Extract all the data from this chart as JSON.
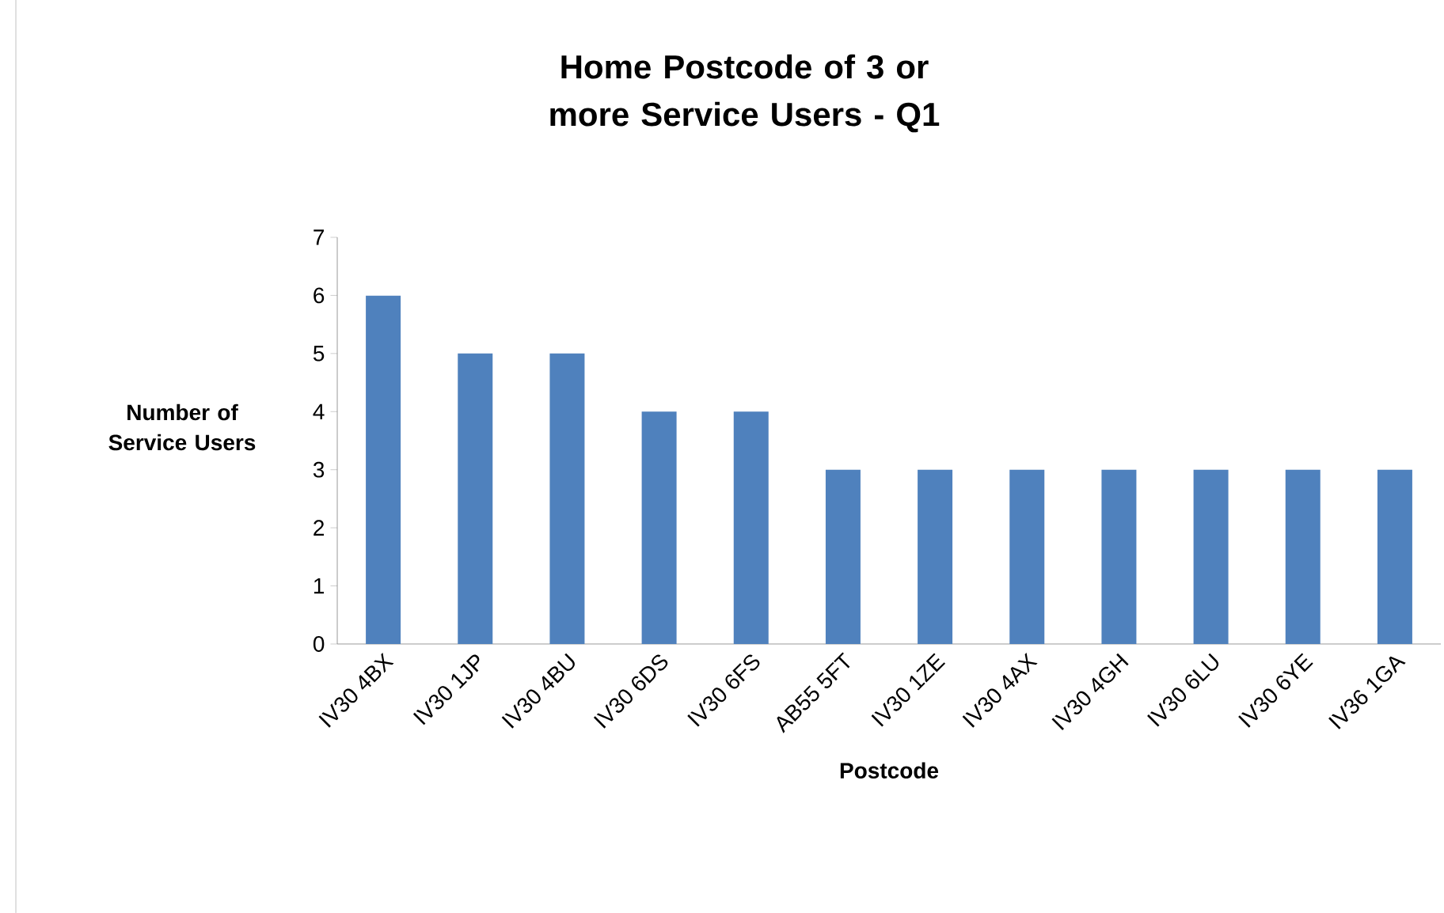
{
  "chart_data": {
    "type": "bar",
    "title": "Home Postcode of 3 or more Service Users - Q1",
    "xlabel": "Postcode",
    "ylabel": "Number of Service Users",
    "categories": [
      "IV30 4BX",
      "IV30 1JP",
      "IV30 4BU",
      "IV30 6DS",
      "IV30 6FS",
      "AB55 5FT",
      "IV30 1ZE",
      "IV30 4AX",
      "IV30 4GH",
      "IV30 6LU",
      "IV30 6YE",
      "IV36 1GA"
    ],
    "values": [
      6,
      5,
      5,
      4,
      4,
      3,
      3,
      3,
      3,
      3,
      3,
      3
    ],
    "color": "#4f81bd",
    "ylim": [
      0,
      7
    ],
    "yticks": [
      0,
      1,
      2,
      3,
      4,
      5,
      6,
      7
    ]
  }
}
